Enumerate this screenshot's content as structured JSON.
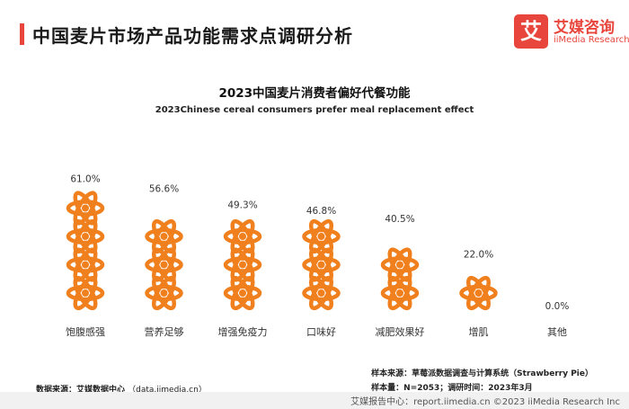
{
  "header": {
    "title": "中国麦片市场产品功能需求点调研分析",
    "logo_mark": "艾",
    "logo_cn": "艾媒咨询",
    "logo_en": "iiMedia Research"
  },
  "chart_data": {
    "type": "bar",
    "style": "pictograph",
    "title": "2023中国麦片消费者偏好代餐功能",
    "subtitle": "2023Chinese cereal consumers prefer meal replacement effect",
    "categories": [
      "饱腹感强",
      "营养足够",
      "增强免疫力",
      "口味好",
      "减肥效果好",
      "增肌",
      "其他"
    ],
    "values": [
      61.0,
      56.6,
      49.3,
      46.8,
      40.5,
      22.0,
      0.0
    ],
    "value_labels": [
      "61.0%",
      "56.6%",
      "49.3%",
      "46.8%",
      "40.5%",
      "22.0%",
      "0.0%"
    ],
    "icons_per_full_column": 4,
    "icon_unit_percent": 15.25,
    "unit": "%",
    "icon_color": "#f07f1e"
  },
  "footer": {
    "source_left_label": "数据来源：艾媒数据中心",
    "source_left_url": "（data.iimedia.cn）",
    "sample_source": "样本来源：草莓派数据调查与计算系统（Strawberry Pie）",
    "sample_size": "样本量：N=2053；调研时间：2023年3月",
    "bottom_bar": "艾媒报告中心：report.iimedia.cn  ©2023  iiMedia Research  Inc"
  }
}
